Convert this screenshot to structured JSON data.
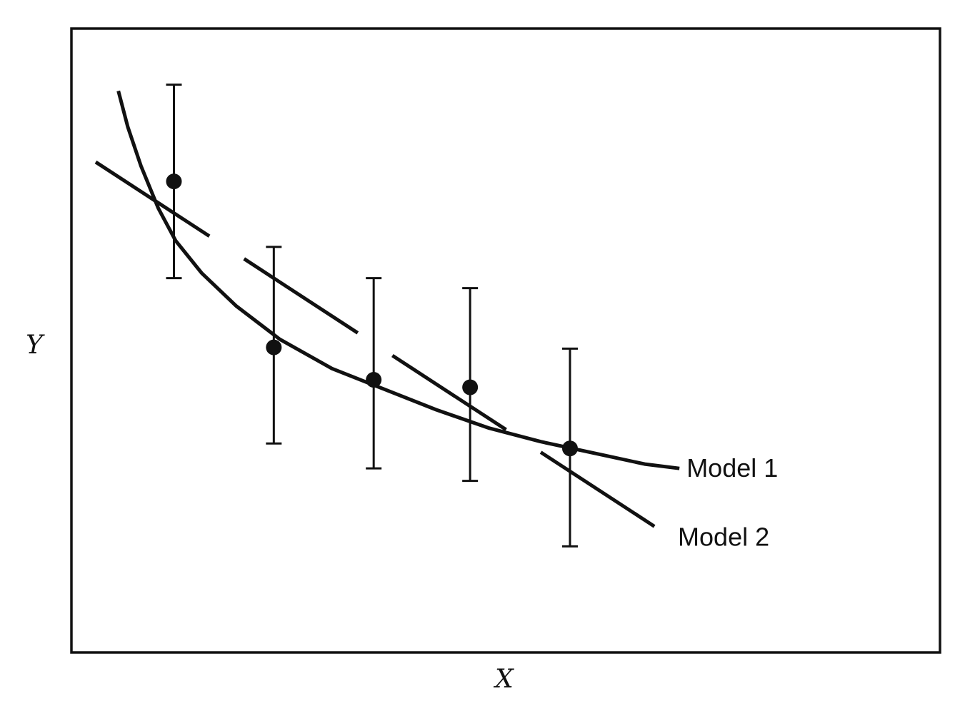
{
  "chart_data": {
    "type": "scatter",
    "title": "",
    "xlabel": "X",
    "ylabel": "Y",
    "xlim": [
      0,
      10
    ],
    "ylim": [
      0,
      10
    ],
    "grid": false,
    "points": [
      {
        "x": 1.18,
        "y": 7.55,
        "err_low": 6.0,
        "err_high": 9.1
      },
      {
        "x": 2.33,
        "y": 4.89,
        "err_low": 3.35,
        "err_high": 6.5
      },
      {
        "x": 3.48,
        "y": 4.37,
        "err_low": 2.95,
        "err_high": 6.0
      },
      {
        "x": 4.59,
        "y": 4.25,
        "err_low": 2.75,
        "err_high": 5.84
      },
      {
        "x": 5.74,
        "y": 3.27,
        "err_low": 1.7,
        "err_high": 4.87
      }
    ],
    "series": [
      {
        "name": "Model 1",
        "style": "solid-curve",
        "x": [
          0.54,
          0.65,
          0.8,
          1.0,
          1.2,
          1.5,
          1.9,
          2.4,
          3.0,
          3.6,
          4.2,
          4.8,
          5.4,
          6.0,
          6.6,
          7.0
        ],
        "values": [
          9.0,
          8.42,
          7.8,
          7.12,
          6.6,
          6.08,
          5.55,
          5.02,
          4.55,
          4.22,
          3.89,
          3.6,
          3.38,
          3.2,
          3.02,
          2.95
        ]
      },
      {
        "name": "Model 2",
        "style": "long-dash",
        "x": [
          0.28,
          6.9
        ],
        "values": [
          7.86,
          1.85
        ]
      }
    ],
    "annotations": [
      {
        "text": "Model 1",
        "series": "Model 1"
      },
      {
        "text": "Model 2",
        "series": "Model 2"
      }
    ]
  }
}
